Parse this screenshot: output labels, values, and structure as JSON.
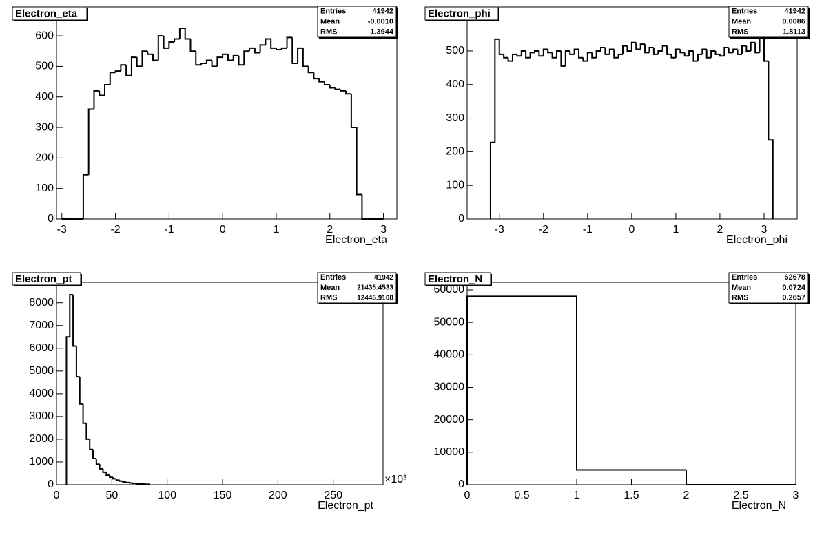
{
  "chart_data": [
    {
      "type": "histogram",
      "title": "Electron_eta",
      "x_label": "Electron_eta",
      "color": "#000000",
      "bins": [
        -3,
        -2.9,
        -2.8,
        -2.7,
        -2.6,
        -2.5,
        -2.4,
        -2.3,
        -2.2,
        -2.1,
        -2,
        -1.9,
        -1.8,
        -1.7,
        -1.6,
        -1.5,
        -1.4,
        -1.3,
        -1.2,
        -1.1,
        -1,
        -0.9,
        -0.8,
        -0.7,
        -0.6,
        -0.5,
        -0.4,
        -0.3,
        -0.2,
        -0.1,
        0,
        0.1,
        0.2,
        0.3,
        0.4,
        0.5,
        0.6,
        0.7,
        0.8,
        0.9,
        1,
        1.1,
        1.2,
        1.3,
        1.4,
        1.5,
        1.6,
        1.7,
        1.8,
        1.9,
        2,
        2.1,
        2.2,
        2.3,
        2.4,
        2.5,
        2.6,
        2.7,
        2.8,
        2.9,
        3
      ],
      "values": [
        0,
        0,
        0,
        0,
        145,
        360,
        420,
        405,
        440,
        480,
        485,
        505,
        470,
        530,
        500,
        550,
        540,
        520,
        600,
        560,
        580,
        590,
        625,
        590,
        550,
        505,
        510,
        520,
        500,
        530,
        540,
        520,
        535,
        505,
        550,
        560,
        545,
        570,
        590,
        560,
        555,
        560,
        595,
        510,
        560,
        500,
        480,
        460,
        450,
        440,
        430,
        425,
        420,
        410,
        300,
        80,
        0,
        0,
        0,
        0
      ],
      "xlim": [
        -3.1,
        3.25
      ],
      "xticks": [
        -3,
        -2,
        -1,
        0,
        1,
        2,
        3
      ],
      "ylim": [
        0,
        695
      ],
      "yticks": [
        0,
        100,
        200,
        300,
        400,
        500,
        600
      ],
      "stats": [
        {
          "label": "Entries",
          "value": "41942"
        },
        {
          "label": "Mean",
          "value": "-0.0010"
        },
        {
          "label": "RMS",
          "value": "1.3944"
        }
      ]
    },
    {
      "type": "histogram",
      "title": "Electron_phi",
      "x_label": "Electron_phi",
      "color": "#000000",
      "bins": [
        -3.2,
        -3.1,
        -3,
        -2.9,
        -2.8,
        -2.7,
        -2.6,
        -2.5,
        -2.4,
        -2.3,
        -2.2,
        -2.1,
        -2,
        -1.9,
        -1.8,
        -1.7,
        -1.6,
        -1.5,
        -1.4,
        -1.3,
        -1.2,
        -1.1,
        -1,
        -0.9,
        -0.8,
        -0.7,
        -0.6,
        -0.5,
        -0.4,
        -0.3,
        -0.2,
        -0.1,
        0,
        0.1,
        0.2,
        0.3,
        0.4,
        0.5,
        0.6,
        0.7,
        0.8,
        0.9,
        1,
        1.1,
        1.2,
        1.3,
        1.4,
        1.5,
        1.6,
        1.7,
        1.8,
        1.9,
        2,
        2.1,
        2.2,
        2.3,
        2.4,
        2.5,
        2.6,
        2.7,
        2.8,
        2.9,
        3,
        3.1,
        3.2
      ],
      "values": [
        228,
        535,
        490,
        480,
        470,
        490,
        485,
        500,
        480,
        495,
        500,
        485,
        505,
        495,
        480,
        500,
        455,
        500,
        490,
        505,
        480,
        470,
        495,
        480,
        500,
        510,
        490,
        505,
        480,
        490,
        515,
        500,
        525,
        505,
        520,
        495,
        510,
        490,
        500,
        515,
        490,
        480,
        505,
        495,
        485,
        500,
        470,
        490,
        505,
        480,
        500,
        490,
        485,
        510,
        495,
        505,
        490,
        515,
        500,
        525,
        495,
        540,
        470,
        235
      ],
      "xlim": [
        -3.73,
        3.75
      ],
      "xticks": [
        -3,
        -2,
        -1,
        0,
        1,
        2,
        3
      ],
      "ylim": [
        0,
        631
      ],
      "yticks": [
        0,
        100,
        200,
        300,
        400,
        500
      ],
      "stats": [
        {
          "label": "Entries",
          "value": "41942"
        },
        {
          "label": "Mean",
          "value": "0.0086"
        },
        {
          "label": "RMS",
          "value": "1.8113"
        }
      ]
    },
    {
      "type": "histogram",
      "title": "Electron_pt",
      "x_label": "Electron_pt",
      "x_multiplier": "×10³",
      "color": "#000000",
      "bins": [
        9,
        12,
        15,
        18,
        21,
        24,
        27,
        30,
        33,
        36,
        39,
        42,
        45,
        48,
        51,
        54,
        57,
        60,
        63,
        66,
        69,
        72,
        75,
        78,
        81,
        84
      ],
      "values": [
        6500,
        8350,
        6100,
        4750,
        3550,
        2700,
        2000,
        1550,
        1150,
        900,
        700,
        550,
        420,
        330,
        260,
        200,
        160,
        120,
        95,
        75,
        60,
        45,
        35,
        28,
        20
      ],
      "xlim": [
        0,
        295
      ],
      "xticks": [
        0,
        50,
        100,
        150,
        200,
        250
      ],
      "ylim": [
        0,
        8900
      ],
      "yticks": [
        0,
        1000,
        2000,
        3000,
        4000,
        5000,
        6000,
        7000,
        8000
      ],
      "stats": [
        {
          "label": "Entries",
          "value": "41942"
        },
        {
          "label": "Mean",
          "value": "21435.4533"
        },
        {
          "label": "RMS",
          "value": "12445.9108"
        }
      ]
    },
    {
      "type": "histogram",
      "title": "Electron_N",
      "x_label": "Electron_N",
      "color": "#000000",
      "bins": [
        0,
        1,
        2,
        3
      ],
      "values": [
        58000,
        4560,
        0
      ],
      "xlim": [
        0,
        3
      ],
      "xticks": [
        0,
        0.5,
        1,
        1.5,
        2,
        2.5,
        3
      ],
      "ylim": [
        0,
        62330
      ],
      "yticks": [
        0,
        10000,
        20000,
        30000,
        40000,
        50000,
        60000
      ],
      "stats": [
        {
          "label": "Entries",
          "value": "62678"
        },
        {
          "label": "Mean",
          "value": "0.0724"
        },
        {
          "label": "RMS",
          "value": "0.2657"
        }
      ]
    }
  ]
}
